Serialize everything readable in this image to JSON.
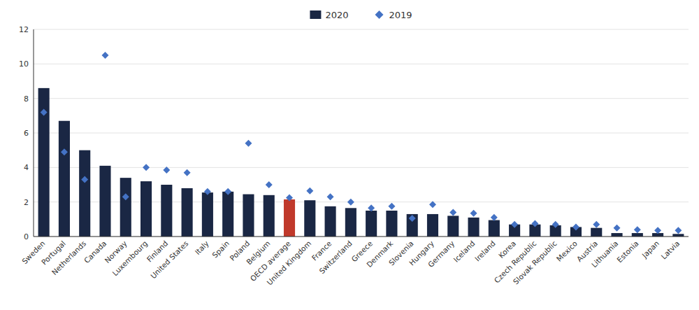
{
  "chart_data": {
    "type": "bar",
    "categories": [
      "Sweden",
      "Portugal",
      "Netherlands",
      "Canada",
      "Norway",
      "Luxembourg",
      "Finland",
      "United States",
      "Italy",
      "Spain",
      "Poland",
      "Belgium",
      "OECD average",
      "United Kingdom",
      "France",
      "Switzerland",
      "Greece",
      "Denmark",
      "Slovenia",
      "Hungary",
      "Germany",
      "Iceland",
      "Ireland",
      "Korea",
      "Czech Republic",
      "Slovak Republic",
      "Mexico",
      "Austria",
      "Lithuania",
      "Estonia",
      "Japan",
      "Latvia"
    ],
    "series": [
      {
        "name": "2020",
        "type": "bar",
        "color": "#1a2744",
        "colors": [
          "#1a2744",
          "#1a2744",
          "#1a2744",
          "#1a2744",
          "#1a2744",
          "#1a2744",
          "#1a2744",
          "#1a2744",
          "#1a2744",
          "#1a2744",
          "#1a2744",
          "#1a2744",
          "#c0392b",
          "#1a2744",
          "#1a2744",
          "#1a2744",
          "#1a2744",
          "#1a2744",
          "#1a2744",
          "#1a2744",
          "#1a2744",
          "#1a2744",
          "#1a2744",
          "#1a2744",
          "#1a2744",
          "#1a2744",
          "#1a2744",
          "#1a2744",
          "#1a2744",
          "#1a2744",
          "#1a2744",
          "#1a2744"
        ],
        "values": [
          8.6,
          6.7,
          5.0,
          4.1,
          3.4,
          3.2,
          3.0,
          2.8,
          2.55,
          2.6,
          2.45,
          2.4,
          2.15,
          2.1,
          1.75,
          1.65,
          1.5,
          1.5,
          1.3,
          1.3,
          1.2,
          1.1,
          0.95,
          0.7,
          0.7,
          0.65,
          0.55,
          0.5,
          0.2,
          0.2,
          0.2,
          0.15
        ]
      },
      {
        "name": "2019",
        "type": "scatter",
        "color": "#4472c4",
        "marker": "diamond",
        "values": [
          7.2,
          4.9,
          3.3,
          10.5,
          2.3,
          4.0,
          3.85,
          3.7,
          2.6,
          2.6,
          5.4,
          3.0,
          2.25,
          2.65,
          2.3,
          2.0,
          1.65,
          1.75,
          1.05,
          1.85,
          1.4,
          1.35,
          1.1,
          0.7,
          0.75,
          0.7,
          0.55,
          0.7,
          0.5,
          0.4,
          0.35,
          0.35
        ]
      }
    ],
    "ylim": [
      0,
      12
    ],
    "yticks": [
      0,
      2,
      4,
      6,
      8,
      10,
      12
    ],
    "grid": true,
    "legend": "top"
  }
}
